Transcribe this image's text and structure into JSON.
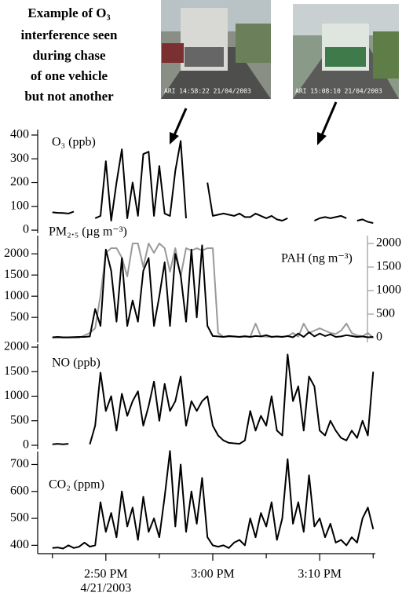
{
  "annotation": {
    "lines": [
      "Example of O₃",
      "interference seen",
      "during chase",
      "of one vehicle",
      "but not another"
    ]
  },
  "photos": [
    {
      "timestamp": "ARI 14:58:22 21/04/2003"
    },
    {
      "timestamp": "ARI 15:08:10 21/04/2003"
    }
  ],
  "chart_data": [
    {
      "type": "line",
      "x": [
        45,
        45.5,
        46,
        46.5,
        47,
        47.5,
        48,
        48.5,
        49,
        49.5,
        50,
        50.5,
        51,
        51.5,
        52,
        52.5,
        53,
        53.5,
        54,
        54.5,
        55,
        55.5,
        56,
        56.5,
        57,
        57.5,
        58,
        58.5,
        59,
        59.5,
        60,
        60.5,
        61,
        61.5,
        62,
        62.5,
        63,
        63.5,
        64,
        64.5,
        65,
        65.5,
        66,
        66.5,
        67,
        67.5,
        68,
        68.5,
        69,
        69.5,
        70,
        70.5,
        71,
        71.5,
        72,
        72.5,
        73,
        73.5,
        74,
        74.5,
        75
      ],
      "xlim": [
        44.8,
        75.2
      ],
      "ylim": [
        -13,
        423
      ],
      "yticks": [
        0,
        100,
        200,
        300,
        400
      ],
      "series": [
        {
          "name": "O₃ (ppb)",
          "color": "#000000",
          "values": [
            75,
            73,
            72,
            70,
            78,
            null,
            null,
            null,
            50,
            60,
            290,
            40,
            200,
            340,
            50,
            200,
            60,
            320,
            330,
            60,
            270,
            70,
            60,
            250,
            375,
            50,
            null,
            null,
            null,
            200,
            60,
            65,
            70,
            65,
            60,
            70,
            55,
            55,
            70,
            60,
            50,
            60,
            45,
            40,
            50,
            null,
            null,
            null,
            null,
            40,
            50,
            55,
            50,
            55,
            60,
            50,
            null,
            40,
            45,
            35,
            30
          ]
        }
      ]
    },
    {
      "type": "line",
      "x": [
        45,
        45.5,
        46,
        46.5,
        47,
        47.5,
        48,
        48.5,
        49,
        49.5,
        50,
        50.5,
        51,
        51.5,
        52,
        52.5,
        53,
        53.5,
        54,
        54.5,
        55,
        55.5,
        56,
        56.5,
        57,
        57.5,
        58,
        58.5,
        59,
        59.5,
        60,
        60.5,
        61,
        61.5,
        62,
        62.5,
        63,
        63.5,
        64,
        64.5,
        65,
        65.5,
        66,
        66.5,
        67,
        67.5,
        68,
        68.5,
        69,
        69.5,
        70,
        70.5,
        71,
        71.5,
        72,
        72.5,
        73,
        73.5,
        74,
        74.5,
        75
      ],
      "xlim": [
        44.8,
        75.2
      ],
      "ylim": [
        -90,
        2430
      ],
      "yticks": [
        500,
        1000,
        1500,
        2000
      ],
      "y2lim": [
        -100,
        2167
      ],
      "y2ticks": [
        0,
        500,
        1000,
        1500,
        2000
      ],
      "y2color": "#999999",
      "series": [
        {
          "name": "PAH (ng m⁻³)",
          "color": "#999999",
          "axis": "y2",
          "values": [
            0,
            0,
            0,
            0,
            0,
            0,
            50,
            100,
            200,
            900,
            1800,
            1900,
            1900,
            1700,
            1300,
            2000,
            2000,
            1500,
            2000,
            1800,
            2000,
            1900,
            1400,
            1900,
            1300,
            1900,
            1850,
            1900,
            1850,
            1900,
            1900,
            100,
            20,
            20,
            20,
            20,
            40,
            20,
            300,
            30,
            20,
            20,
            20,
            20,
            30,
            100,
            20,
            300,
            100,
            150,
            200,
            150,
            100,
            80,
            150,
            300,
            100,
            50,
            30,
            100,
            0
          ]
        },
        {
          "name": "PM₂.₅ (µg m⁻³)",
          "color": "#000000",
          "values": [
            30,
            40,
            30,
            30,
            35,
            40,
            40,
            50,
            700,
            300,
            2100,
            1600,
            400,
            1900,
            300,
            900,
            400,
            1600,
            1900,
            300,
            1000,
            1800,
            300,
            2000,
            1500,
            400,
            2100,
            500,
            2200,
            300,
            60,
            50,
            40,
            60,
            50,
            40,
            50,
            40,
            60,
            50,
            80,
            40,
            50,
            40,
            60,
            30,
            120,
            40,
            150,
            50,
            120,
            60,
            100,
            40,
            50,
            80,
            60,
            40,
            50,
            30,
            40
          ]
        }
      ]
    },
    {
      "type": "line",
      "x": [
        45,
        45.5,
        46,
        46.5,
        47,
        47.5,
        48,
        48.5,
        49,
        49.5,
        50,
        50.5,
        51,
        51.5,
        52,
        52.5,
        53,
        53.5,
        54,
        54.5,
        55,
        55.5,
        56,
        56.5,
        57,
        57.5,
        58,
        58.5,
        59,
        59.5,
        60,
        60.5,
        61,
        61.5,
        62,
        62.5,
        63,
        63.5,
        64,
        64.5,
        65,
        65.5,
        66,
        66.5,
        67,
        67.5,
        68,
        68.5,
        69,
        69.5,
        70,
        70.5,
        71,
        71.5,
        72,
        72.5,
        73,
        73.5,
        74,
        74.5,
        75
      ],
      "xlim": [
        44.8,
        75.2
      ],
      "ylim": [
        -80,
        2064
      ],
      "yticks": [
        0,
        500,
        1000,
        1500,
        2000
      ],
      "series": [
        {
          "name": "NO (ppb)",
          "color": "#000000",
          "values": [
            20,
            30,
            20,
            30,
            null,
            null,
            null,
            20,
            400,
            1480,
            700,
            1000,
            300,
            1050,
            600,
            900,
            1100,
            400,
            800,
            1300,
            500,
            1250,
            700,
            900,
            1400,
            400,
            900,
            700,
            900,
            1000,
            400,
            200,
            100,
            50,
            40,
            30,
            100,
            700,
            300,
            600,
            400,
            1000,
            300,
            200,
            1850,
            900,
            1200,
            300,
            1400,
            1200,
            300,
            200,
            500,
            300,
            150,
            100,
            300,
            150,
            500,
            200,
            1500
          ]
        }
      ]
    },
    {
      "type": "line",
      "x": [
        45,
        45.5,
        46,
        46.5,
        47,
        47.5,
        48,
        48.5,
        49,
        49.5,
        50,
        50.5,
        51,
        51.5,
        52,
        52.5,
        53,
        53.5,
        54,
        54.5,
        55,
        55.5,
        56,
        56.5,
        57,
        57.5,
        58,
        58.5,
        59,
        59.5,
        60,
        60.5,
        61,
        61.5,
        62,
        62.5,
        63,
        63.5,
        64,
        64.5,
        65,
        65.5,
        66,
        66.5,
        67,
        67.5,
        68,
        68.5,
        69,
        69.5,
        70,
        70.5,
        71,
        71.5,
        72,
        72.5,
        73,
        73.5,
        74,
        74.5,
        75
      ],
      "xlim": [
        44.8,
        75.2
      ],
      "ylim": [
        369,
        748
      ],
      "yticks": [
        400,
        500,
        600,
        700
      ],
      "xticks": [
        {
          "value": 50,
          "label": "2:50 PM"
        },
        {
          "value": 60,
          "label": "3:00 PM"
        },
        {
          "value": 70,
          "label": "3:10 PM"
        }
      ],
      "xminorticks": [
        45,
        55,
        65,
        75
      ],
      "date": "4/21/2003",
      "series": [
        {
          "name": "CO₂ (ppm)",
          "color": "#000000",
          "values": [
            390,
            392,
            388,
            400,
            390,
            395,
            410,
            395,
            400,
            560,
            450,
            520,
            430,
            600,
            470,
            540,
            420,
            580,
            450,
            500,
            430,
            580,
            750,
            470,
            700,
            450,
            600,
            480,
            650,
            430,
            400,
            395,
            400,
            390,
            410,
            420,
            400,
            500,
            430,
            520,
            470,
            560,
            420,
            500,
            720,
            480,
            560,
            450,
            660,
            470,
            500,
            430,
            480,
            410,
            420,
            400,
            430,
            410,
            500,
            540,
            460
          ]
        }
      ]
    }
  ]
}
